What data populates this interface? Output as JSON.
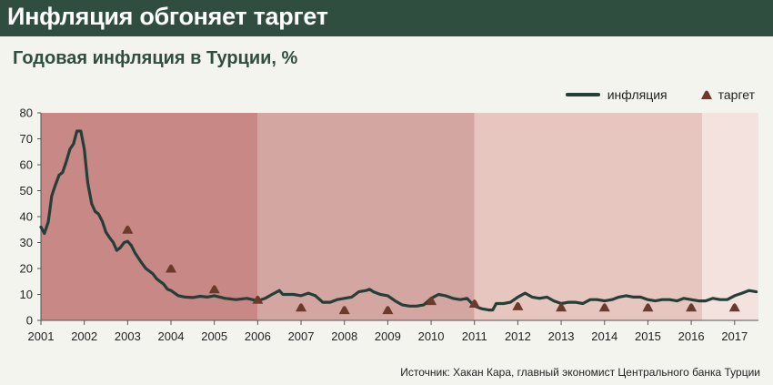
{
  "header": {
    "title": "Инфляция обгоняет таргет",
    "subtitle": "Годовая инфляция в Турции, %"
  },
  "legend": {
    "inflation_label": "инфляция",
    "target_label": "таргет"
  },
  "source": "Источник: Хакан Кара, главный экономист Центрального банка Турции",
  "colors": {
    "header_bg": "#2f4e40",
    "line": "#243f38",
    "target_marker": "#6b3a2c",
    "band_1": "#c88885",
    "band_2": "#d4a6a2",
    "band_3": "#e8c6c0",
    "band_4": "#f4e2de"
  },
  "chart_data": {
    "type": "line",
    "title": "Годовая инфляция в Турции, %",
    "xlabel": "",
    "ylabel": "",
    "xlim": [
      2001,
      2017.55
    ],
    "ylim": [
      0,
      80
    ],
    "x_ticks": [
      "2001",
      "2002",
      "2003",
      "2004",
      "2005",
      "2006",
      "2007",
      "2008",
      "2009",
      "2010",
      "2011",
      "2012",
      "2013",
      "2014",
      "2015",
      "2016",
      "2017"
    ],
    "y_ticks": [
      "0",
      "10",
      "20",
      "30",
      "40",
      "50",
      "60",
      "70",
      "80"
    ],
    "background_bands": [
      {
        "from": 2001,
        "to": 2006
      },
      {
        "from": 2006,
        "to": 2011
      },
      {
        "from": 2011,
        "to": 2016.25
      },
      {
        "from": 2016.25,
        "to": 2017.55
      }
    ],
    "series": [
      {
        "name": "инфляция",
        "x": [
          2001.0,
          2001.08,
          2001.17,
          2001.25,
          2001.33,
          2001.42,
          2001.5,
          2001.58,
          2001.67,
          2001.75,
          2001.83,
          2001.92,
          2002.0,
          2002.08,
          2002.17,
          2002.25,
          2002.33,
          2002.42,
          2002.5,
          2002.58,
          2002.67,
          2002.75,
          2002.83,
          2002.92,
          2003.0,
          2003.08,
          2003.17,
          2003.25,
          2003.33,
          2003.42,
          2003.5,
          2003.58,
          2003.67,
          2003.75,
          2003.83,
          2003.92,
          2004.0,
          2004.17,
          2004.33,
          2004.5,
          2004.67,
          2004.83,
          2005.0,
          2005.25,
          2005.5,
          2005.75,
          2006.0,
          2006.17,
          2006.33,
          2006.5,
          2006.58,
          2006.67,
          2006.83,
          2007.0,
          2007.17,
          2007.33,
          2007.5,
          2007.67,
          2007.83,
          2008.0,
          2008.17,
          2008.33,
          2008.5,
          2008.58,
          2008.67,
          2008.83,
          2009.0,
          2009.17,
          2009.33,
          2009.5,
          2009.67,
          2009.83,
          2010.0,
          2010.17,
          2010.33,
          2010.5,
          2010.67,
          2010.83,
          2011.0,
          2011.17,
          2011.33,
          2011.42,
          2011.5,
          2011.67,
          2011.83,
          2012.0,
          2012.17,
          2012.33,
          2012.5,
          2012.67,
          2012.83,
          2013.0,
          2013.17,
          2013.33,
          2013.5,
          2013.67,
          2013.83,
          2014.0,
          2014.17,
          2014.33,
          2014.5,
          2014.67,
          2014.83,
          2015.0,
          2015.17,
          2015.33,
          2015.5,
          2015.67,
          2015.83,
          2016.0,
          2016.17,
          2016.33,
          2016.5,
          2016.67,
          2016.83,
          2017.0,
          2017.17,
          2017.33,
          2017.5
        ],
        "values": [
          36,
          33.5,
          38,
          48,
          52,
          56,
          57,
          61,
          66,
          68,
          73,
          73,
          66,
          53,
          45,
          42,
          41,
          38,
          34,
          32,
          30,
          27,
          28,
          30,
          30.5,
          29,
          26,
          24,
          22,
          20,
          19,
          18,
          16,
          15,
          14,
          12,
          11.5,
          9.5,
          9,
          8.8,
          9.3,
          9,
          9.5,
          8.5,
          8,
          8.5,
          7.5,
          8.5,
          10,
          11.5,
          10,
          10,
          10,
          9.5,
          10.5,
          9.5,
          7,
          7,
          8,
          8.5,
          9,
          11,
          11.5,
          12,
          11,
          10,
          9.5,
          7.5,
          6,
          5.5,
          5.5,
          6,
          8.5,
          10,
          9.5,
          8.5,
          8,
          8.5,
          5.5,
          4.5,
          4,
          4,
          6.5,
          6.5,
          7,
          9,
          10.5,
          9,
          8.5,
          9,
          7.5,
          6.5,
          7,
          7,
          6.5,
          8,
          8,
          7.5,
          8,
          9,
          9.5,
          9,
          9,
          8,
          7.5,
          8,
          8,
          7.5,
          8.5,
          8,
          7.5,
          7.5,
          8.5,
          8,
          8,
          9.5,
          10.5,
          11.5,
          11
        ]
      },
      {
        "name": "таргет",
        "x": [
          2003.0,
          2004.0,
          2005.0,
          2006.0,
          2007.0,
          2008.0,
          2009.0,
          2010.0,
          2011.0,
          2012.0,
          2013.0,
          2014.0,
          2015.0,
          2016.0,
          2017.0
        ],
        "values": [
          35,
          20,
          12,
          8,
          5,
          4,
          4,
          7.5,
          6.5,
          5.5,
          5,
          5,
          5,
          5,
          5
        ]
      }
    ],
    "legend_position": "top-right",
    "grid": false
  }
}
